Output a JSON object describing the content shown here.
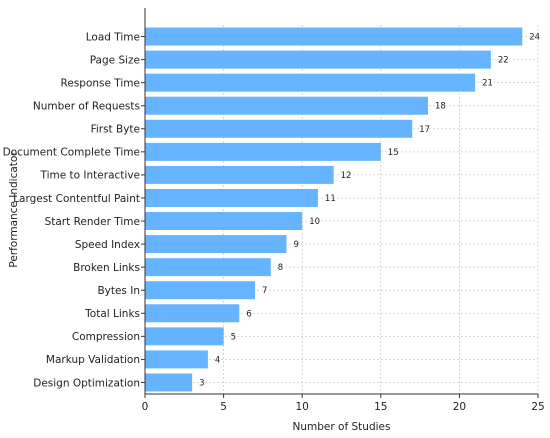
{
  "chart_data": {
    "type": "bar",
    "orientation": "horizontal",
    "categories": [
      "Load Time",
      "Page Size",
      "Response Time",
      "Number of Requests",
      "First Byte",
      "Document Complete Time",
      "Time to Interactive",
      "Largest Contentful Paint",
      "Start Render Time",
      "Speed Index",
      "Broken Links",
      "Bytes In",
      "Total Links",
      "Compression",
      "Markup Validation",
      "Design Optimization"
    ],
    "values": [
      24,
      22,
      21,
      18,
      17,
      15,
      12,
      11,
      10,
      9,
      8,
      7,
      6,
      5,
      4,
      3
    ],
    "xlabel": "Number of Studies",
    "ylabel": "Performance Indicator",
    "xlim": [
      0,
      25
    ],
    "xticks": [
      "0",
      "5",
      "10",
      "15",
      "20",
      "25"
    ],
    "grid": true,
    "bar_color": "#66b3ff"
  }
}
